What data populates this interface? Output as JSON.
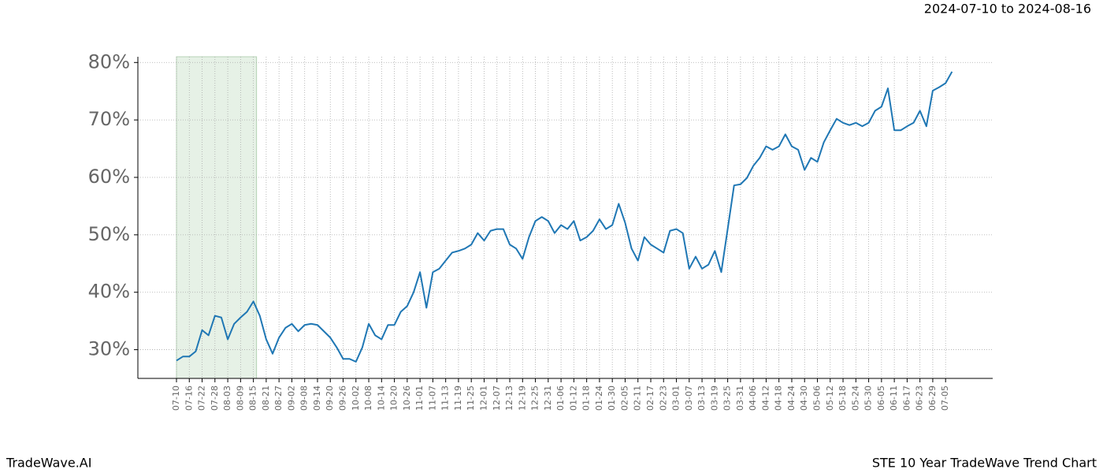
{
  "chart_data": {
    "type": "line",
    "title": "2024-07-10 to 2024-08-16",
    "footer_left": "TradeWave.AI",
    "footer_right": "STE 10 Year TradeWave Trend Chart",
    "highlight": [
      "07-10",
      "08-15"
    ],
    "highlight_color": "#e6f1e6",
    "grid": true,
    "categories": [
      "07-10",
      null,
      "07-16",
      null,
      "07-22",
      null,
      "07-28",
      null,
      "08-03",
      null,
      "08-09",
      null,
      "08-15",
      null,
      "08-21",
      null,
      "08-27",
      null,
      "09-02",
      null,
      "09-08",
      null,
      "09-14",
      null,
      "09-20",
      null,
      "09-26",
      null,
      "10-02",
      null,
      "10-08",
      null,
      "10-14",
      null,
      "10-20",
      null,
      "10-26",
      null,
      "11-01",
      null,
      "11-07",
      null,
      "11-13",
      null,
      "11-19",
      null,
      "11-25",
      null,
      "12-01",
      null,
      "12-07",
      null,
      "12-13",
      null,
      "12-19",
      null,
      "12-25",
      null,
      "12-31",
      null,
      "01-06",
      null,
      "01-12",
      null,
      "01-18",
      null,
      "01-24",
      null,
      "01-30",
      null,
      "02-05",
      null,
      "02-11",
      null,
      "02-17",
      null,
      "02-23",
      null,
      "03-01",
      null,
      "03-07",
      null,
      "03-13",
      null,
      "03-19",
      null,
      "03-25",
      null,
      "03-31",
      null,
      "04-06",
      null,
      "04-12",
      null,
      "04-18",
      null,
      "04-24",
      null,
      "04-30",
      null,
      "05-06",
      null,
      "05-12",
      null,
      "05-18",
      null,
      "05-24",
      null,
      "05-30",
      null,
      "06-05",
      null,
      "06-11",
      null,
      "06-17",
      null,
      "06-23",
      null,
      "06-29",
      null,
      "07-05",
      null
    ],
    "series": [
      {
        "color": "#1f77b4",
        "values": [
          28.1,
          28.8,
          28.8,
          29.7,
          33.4,
          32.5,
          35.9,
          35.6,
          31.8,
          34.5,
          35.6,
          36.6,
          38.4,
          35.9,
          31.8,
          29.3,
          32.1,
          33.8,
          34.5,
          33.2,
          34.3,
          34.5,
          34.3,
          33.2,
          32.1,
          30.4,
          28.4,
          28.4,
          27.9,
          30.4,
          34.5,
          32.5,
          31.8,
          34.3,
          34.3,
          36.6,
          37.6,
          40.0,
          43.5,
          37.3,
          43.5,
          44.1,
          45.5,
          46.9,
          47.2,
          47.6,
          48.3,
          50.3,
          49.0,
          50.7,
          51.0,
          51.0,
          48.3,
          47.6,
          45.8,
          49.6,
          52.4,
          53.1,
          52.4,
          50.3,
          51.7,
          51.0,
          52.4,
          49.0,
          49.6,
          50.7,
          52.7,
          51.0,
          51.7,
          55.4,
          52.1,
          47.6,
          45.5,
          49.6,
          48.3,
          47.6,
          46.9,
          50.7,
          51.0,
          50.3,
          44.1,
          46.2,
          44.1,
          44.8,
          47.2,
          43.5,
          51.0,
          58.6,
          58.8,
          59.9,
          62.0,
          63.4,
          65.4,
          64.8,
          65.4,
          67.5,
          65.4,
          64.8,
          61.3,
          63.4,
          62.7,
          66.1,
          68.2,
          70.2,
          69.5,
          69.1,
          69.5,
          68.9,
          69.5,
          71.6,
          72.3,
          75.5,
          68.2,
          68.2,
          68.9,
          69.5,
          71.6,
          68.9,
          75.1,
          75.7,
          76.4,
          78.4
        ]
      }
    ],
    "ylim": [
      25,
      81
    ],
    "yticks": [
      {
        "value": 30,
        "label": "30%"
      },
      {
        "value": 40,
        "label": "40%"
      },
      {
        "value": 50,
        "label": "50%"
      },
      {
        "value": 60,
        "label": "60%"
      },
      {
        "value": 70,
        "label": "70%"
      },
      {
        "value": 80,
        "label": "80%"
      }
    ]
  }
}
